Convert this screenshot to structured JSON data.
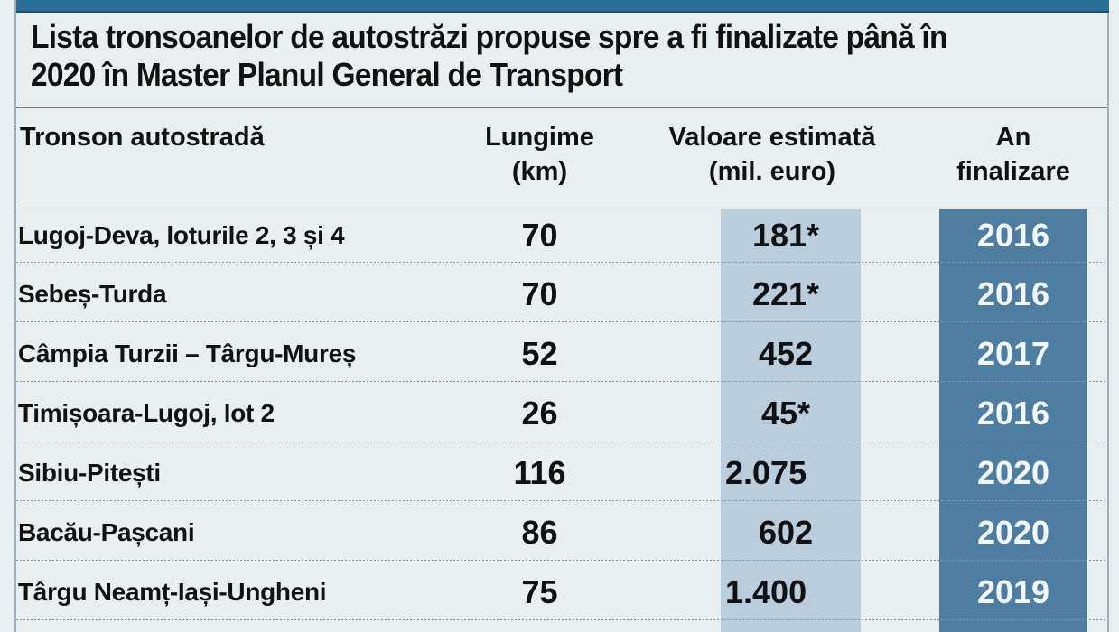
{
  "title": {
    "line1": "Lista tronsoanelor de autostrăzi propuse spre a fi finalizate până în",
    "line2": "2020 în Master Planul General de Transport"
  },
  "headers": {
    "segment": "Tronson autostradă",
    "length_1": "Lungime",
    "length_2": "(km)",
    "value_1": "Valoare estimată",
    "value_2": "(mil. euro)",
    "year_1": "An",
    "year_2": "finalizare"
  },
  "rows": [
    {
      "name": "Lugoj-Deva, loturile 2, 3 și 4",
      "length": "70",
      "value": "181*",
      "year": "2016"
    },
    {
      "name": "Sebeș-Turda",
      "length": "70",
      "value": "221*",
      "year": "2016"
    },
    {
      "name": "Câmpia Turzii – Târgu-Mureș",
      "length": "52",
      "value": "452",
      "year": "2017"
    },
    {
      "name": "Timișoara-Lugoj, lot 2",
      "length": "26",
      "value": "45*",
      "year": "2016"
    },
    {
      "name": "Sibiu-Pitești",
      "length": "116",
      "value": "2.075",
      "year": "2020"
    },
    {
      "name": "Bacău-Pașcani",
      "length": "86",
      "value": "602",
      "year": "2020"
    },
    {
      "name": "Târgu Neamț-Iași-Ungheni",
      "length": "75",
      "value": "1.400",
      "year": "2019"
    }
  ],
  "colors": {
    "accent_bar": "#2b6e96",
    "value_column": "#b9cddc",
    "year_column": "#4d7ea2",
    "background": "#e9eef1"
  }
}
